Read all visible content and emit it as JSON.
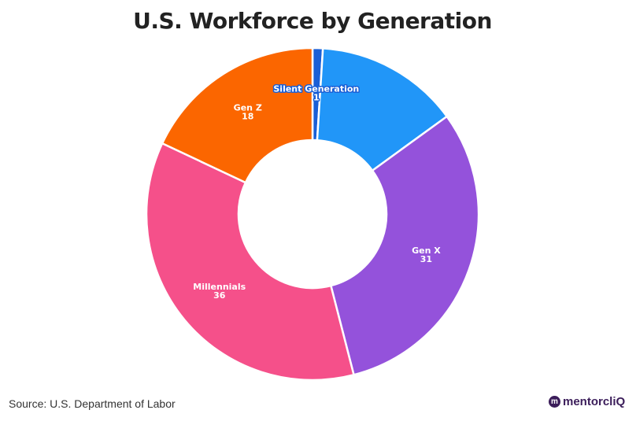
{
  "chart_data": {
    "type": "pie",
    "donut": true,
    "title": "U.S. Workforce by Generation",
    "slices": [
      {
        "name": "Silent Generation",
        "value": 1,
        "color": "#1a5fd6",
        "show_label": true
      },
      {
        "name": "",
        "value": 14,
        "color": "#2196f8",
        "show_label": false
      },
      {
        "name": "Gen X",
        "value": 31,
        "color": "#9452db",
        "show_label": true
      },
      {
        "name": "Millennials",
        "value": 36,
        "color": "#f5508a",
        "show_label": true
      },
      {
        "name": "Gen Z",
        "value": 18,
        "color": "#fb6600",
        "show_label": true
      }
    ],
    "legend": "none"
  },
  "footer": {
    "source": "Source: U.S. Department of Labor",
    "logo_text": "mentorcliQ"
  }
}
